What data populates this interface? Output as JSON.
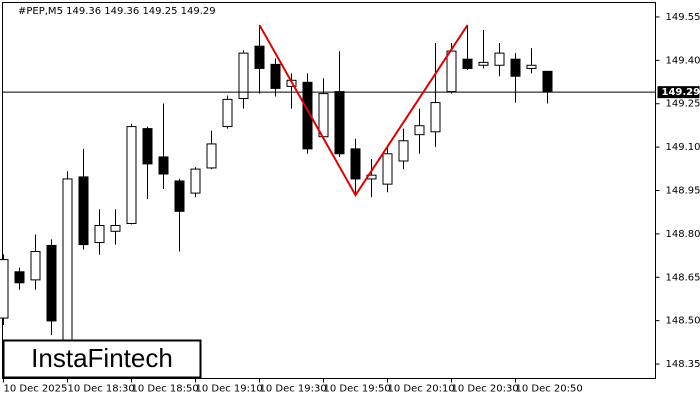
{
  "chart_data": {
    "type": "candlestick",
    "title": "#PEP,M5  149.36 149.36 149.25 149.29",
    "watermark": "InstaFintech",
    "categories": [
      "10 Dec 2025",
      null,
      null,
      null,
      "10 Dec 18:30",
      null,
      null,
      null,
      "10 Dec 18:50",
      null,
      null,
      null,
      "10 Dec 19:10",
      null,
      null,
      null,
      "10 Dec 19:30",
      null,
      null,
      null,
      "10 Dec 19:50",
      null,
      null,
      null,
      "10 Dec 20:10",
      null,
      null,
      null,
      "10 Dec 20:30",
      null,
      null,
      null,
      "10 Dec 20:50",
      null,
      null
    ],
    "open": [
      148.509,
      148.669,
      148.641,
      148.76,
      148.328,
      148.997,
      148.77,
      148.809,
      148.836,
      149.164,
      149.066,
      148.983,
      148.941,
      149.028,
      149.171,
      149.268,
      149.449,
      149.386,
      149.31,
      149.324,
      149.136,
      149.292,
      149.094,
      148.99,
      148.972,
      149.052,
      149.143,
      149.153,
      149.292,
      149.404,
      149.383,
      149.383,
      149.404,
      149.372,
      149.362
    ],
    "high": [
      148.729,
      148.683,
      148.798,
      148.781,
      149.017,
      149.094,
      148.885,
      148.885,
      149.181,
      149.171,
      149.251,
      148.99,
      149.031,
      149.157,
      149.278,
      149.435,
      149.522,
      149.407,
      149.355,
      149.355,
      149.338,
      149.432,
      149.129,
      149.059,
      149.101,
      149.164,
      149.233,
      149.46,
      149.46,
      149.519,
      149.505,
      149.46,
      149.425,
      149.442,
      149.362
    ],
    "low": [
      148.485,
      148.607,
      148.607,
      148.45,
      148.31,
      148.746,
      148.728,
      148.763,
      148.833,
      148.92,
      148.955,
      148.739,
      148.927,
      149.024,
      149.164,
      149.233,
      149.285,
      149.275,
      149.233,
      149.077,
      149.129,
      149.066,
      148.937,
      148.927,
      148.944,
      149.024,
      149.077,
      149.101,
      149.285,
      149.366,
      149.372,
      149.345,
      149.254,
      149.355,
      149.251
    ],
    "close": [
      148.711,
      148.631,
      148.739,
      148.499,
      148.99,
      148.763,
      148.829,
      148.829,
      149.171,
      149.042,
      149.007,
      148.878,
      149.024,
      149.111,
      149.265,
      149.425,
      149.372,
      149.303,
      149.331,
      149.094,
      149.285,
      149.077,
      148.99,
      149.003,
      149.077,
      149.122,
      149.174,
      149.254,
      149.432,
      149.372,
      149.393,
      149.425,
      149.345,
      149.383,
      149.292
    ],
    "up_color": "#ffffff",
    "down_color": "#000000",
    "last_price": 149.29,
    "pattern": {
      "color": "#e00000",
      "x": [
        16,
        22,
        29
      ],
      "y": [
        149.522,
        148.934,
        149.522
      ]
    },
    "ylim": [
      148.3,
      149.6
    ],
    "yticks": [
      {
        "value": 148.35,
        "label": "148.35"
      },
      {
        "value": 148.5,
        "label": "148.50"
      },
      {
        "value": 148.65,
        "label": "148.65"
      },
      {
        "value": 148.8,
        "label": "148.80"
      },
      {
        "value": 148.95,
        "label": "148.95"
      },
      {
        "value": 149.1,
        "label": "149.10"
      },
      {
        "value": 149.25,
        "label": "149.25"
      },
      {
        "value": 149.4,
        "label": "149.40"
      },
      {
        "value": 149.55,
        "label": "149.55"
      }
    ]
  }
}
